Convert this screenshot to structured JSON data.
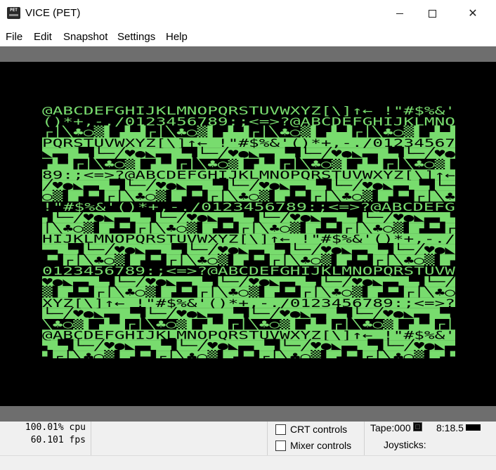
{
  "window": {
    "title": "VICE (PET)",
    "icon_label": "PET",
    "controls": [
      "minimize-icon",
      "maximize-icon",
      "close-icon"
    ]
  },
  "menu": {
    "items": [
      "File",
      "Edit",
      "Snapshot",
      "Settings",
      "Help"
    ]
  },
  "emulator": {
    "phosphor_color": "#78dc6e",
    "background_color": "#000000",
    "border_color": "#6e6e6e",
    "charset_sequence": "@ABCDEFGHIJKLMNOPQRSTUVWXYZ[\\]↑← !\"#$%&'()*+,-./0123456789:;<=>?",
    "screen_rows": [
      "@ABCDEFGHIJKLMNOPQRSTUVWXYZ[\\]↑← !\"#$%&'",
      "()*+,-./0123456789:;<=>?"
    ]
  },
  "status": {
    "cpu": "100.01% cpu",
    "fps": "60.101 fps",
    "crt_controls": "CRT controls",
    "mixer_controls": "Mixer controls",
    "tape": "Tape:000",
    "drive": "8:18.5",
    "joysticks": "Joysticks:"
  }
}
